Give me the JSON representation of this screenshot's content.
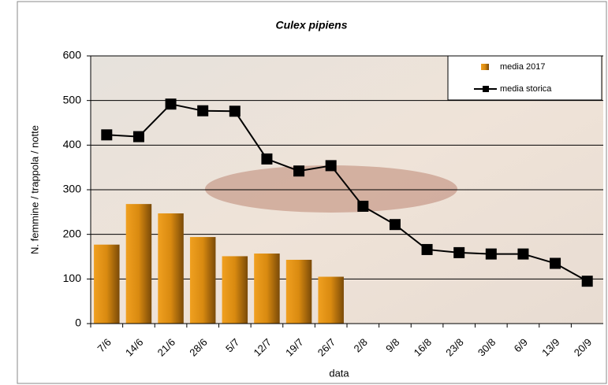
{
  "chart_data": {
    "type": "bar",
    "title": "Culex pipiens",
    "xlabel": "data",
    "ylabel": "N. femmine / trappola / notte",
    "categories": [
      "7/6",
      "14/6",
      "21/6",
      "28/6",
      "5/7",
      "12/7",
      "19/7",
      "26/7",
      "2/8",
      "9/8",
      "16/8",
      "23/8",
      "30/8",
      "6/9",
      "13/9",
      "20/9"
    ],
    "series": [
      {
        "name": "media 2017",
        "type": "bar",
        "color": "#d98a10",
        "values": [
          177,
          268,
          247,
          194,
          151,
          157,
          143,
          105,
          null,
          null,
          null,
          null,
          null,
          null,
          null,
          null
        ]
      },
      {
        "name": "media storica",
        "type": "line",
        "color": "#000000",
        "values": [
          423,
          419,
          492,
          477,
          476,
          369,
          342,
          354,
          263,
          222,
          166,
          159,
          156,
          156,
          135,
          95
        ]
      }
    ],
    "ylim": [
      0,
      600
    ],
    "yticks": [
      0,
      100,
      200,
      300,
      400,
      500,
      600
    ],
    "grid": true,
    "legend": "top-right"
  }
}
